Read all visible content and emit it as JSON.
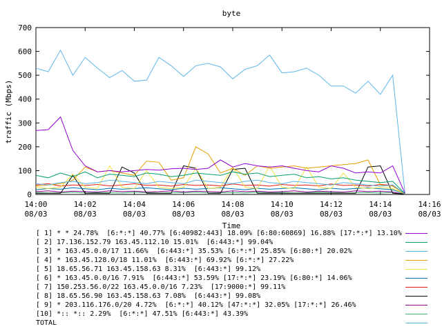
{
  "chart_data": {
    "type": "line",
    "title": "byte",
    "xlabel": "Time",
    "ylabel": "traffic (Mbps)",
    "ylim": [
      0,
      700
    ],
    "yticks": [
      0,
      100,
      200,
      300,
      400,
      500,
      600,
      700
    ],
    "xticks": [
      {
        "time": "14:00",
        "date": "08/03"
      },
      {
        "time": "14:02",
        "date": "08/03"
      },
      {
        "time": "14:04",
        "date": "08/03"
      },
      {
        "time": "14:06",
        "date": "08/03"
      },
      {
        "time": "14:08",
        "date": "08/03"
      },
      {
        "time": "14:10",
        "date": "08/03"
      },
      {
        "time": "14:12",
        "date": "08/03"
      },
      {
        "time": "14:14",
        "date": "08/03"
      },
      {
        "time": "14:16",
        "date": "08/03"
      }
    ],
    "xlim_minutes": [
      0,
      16
    ],
    "x_minutes": [
      0,
      0.5,
      1,
      1.5,
      2,
      2.5,
      3,
      3.5,
      4,
      4.5,
      5,
      5.5,
      6,
      6.5,
      7,
      7.5,
      8,
      8.5,
      9,
      9.5,
      10,
      10.5,
      11,
      11.5,
      12,
      12.5,
      13,
      13.5,
      14,
      14.5,
      15
    ],
    "grid": false,
    "legend_placement": "below",
    "series": [
      {
        "name": "[ 1] * * 24.78%  [6:*:*] 40.77% [6:40982:443] 18.09% [6:80:60869] 16.88% [17:*:*] 13.10%",
        "color": "#9400d3",
        "values": [
          268,
          272,
          325,
          185,
          120,
          95,
          100,
          95,
          100,
          105,
          102,
          108,
          110,
          105,
          110,
          145,
          115,
          130,
          120,
          115,
          120,
          110,
          100,
          95,
          120,
          110,
          90,
          95,
          90,
          120,
          5
        ]
      },
      {
        "name": "[ 2] 17.136.152.79 163.45.112.10 15.01%  [6:443:*] 99.04%",
        "color": "#009e73",
        "values": [
          80,
          70,
          90,
          75,
          95,
          70,
          85,
          80,
          75,
          90,
          85,
          75,
          80,
          90,
          85,
          80,
          95,
          85,
          90,
          75,
          80,
          85,
          70,
          75,
          65,
          70,
          60,
          55,
          50,
          55,
          3
        ]
      },
      {
        "name": "[ 3] * 163.45.0.0/17 11.66%  [6:443:*] 35.53% [6:*:*] 25.85% [6:80:*] 20.02%",
        "color": "#56b4e9",
        "values": [
          45,
          40,
          50,
          55,
          45,
          50,
          60,
          55,
          50,
          45,
          55,
          50,
          45,
          60,
          55,
          50,
          45,
          55,
          60,
          50,
          45,
          55,
          50,
          45,
          40,
          50,
          45,
          40,
          35,
          40,
          3
        ]
      },
      {
        "name": "[ 4] * 163.45.128.0/18 11.01%  [6:443:*] 69.92% [6:*:*] 27.22%",
        "color": "#e69f00",
        "values": [
          35,
          40,
          45,
          60,
          115,
          95,
          100,
          90,
          80,
          140,
          135,
          60,
          70,
          200,
          170,
          90,
          110,
          80,
          120,
          110,
          115,
          120,
          110,
          115,
          120,
          125,
          130,
          145,
          40,
          35,
          2
        ]
      },
      {
        "name": "[ 5] 18.65.56.71 163.45.158.63 8.31%  [6:443:*] 99.12%",
        "color": "#f0e442",
        "values": [
          30,
          25,
          30,
          85,
          30,
          25,
          120,
          30,
          25,
          100,
          30,
          25,
          30,
          110,
          25,
          30,
          115,
          30,
          25,
          120,
          30,
          25,
          115,
          30,
          25,
          90,
          30,
          25,
          30,
          25,
          2
        ]
      },
      {
        "name": "[ 6] * 163.45.0.0/16 7.91%  [6:443:*] 53.59% [17:*:*] 23.19% [6:80:*] 14.06%",
        "color": "#0072b2",
        "values": [
          20,
          25,
          22,
          28,
          24,
          20,
          26,
          22,
          25,
          28,
          24,
          20,
          26,
          22,
          25,
          28,
          24,
          20,
          26,
          22,
          25,
          28,
          24,
          20,
          26,
          22,
          25,
          28,
          24,
          20,
          2
        ]
      },
      {
        "name": "[ 7] 150.253.56.0/22 163.45.0.0/16 7.23%  [17:9000:*] 99.11%",
        "color": "#e51e10",
        "values": [
          40,
          45,
          35,
          40,
          38,
          42,
          36,
          40,
          45,
          38,
          40,
          35,
          42,
          38,
          40,
          36,
          44,
          38,
          40,
          35,
          42,
          38,
          40,
          36,
          44,
          38,
          40,
          35,
          42,
          38,
          2
        ]
      },
      {
        "name": "[ 8] 18.65.56.90 163.45.158.63 7.08%  [6:443:*] 99.08%",
        "color": "#000000",
        "values": [
          5,
          5,
          5,
          80,
          5,
          5,
          5,
          115,
          90,
          5,
          5,
          5,
          120,
          110,
          5,
          5,
          105,
          110,
          5,
          5,
          5,
          5,
          5,
          5,
          5,
          5,
          5,
          115,
          120,
          5,
          2
        ]
      },
      {
        "name": "[ 9] * 203.116.176.0/20 4.72%  [6:*:*] 40.12% [47:*:*] 32.05% [17:*:*] 26.46%",
        "color": "#8b008b",
        "values": [
          12,
          15,
          10,
          14,
          12,
          10,
          15,
          12,
          14,
          10,
          12,
          15,
          10,
          14,
          12,
          10,
          15,
          12,
          14,
          10,
          12,
          15,
          10,
          14,
          12,
          10,
          15,
          12,
          14,
          10,
          1
        ]
      },
      {
        "name": "[10] *:: *:: 2.29%  [6:*:*] 47.51% [6:443:*] 43.39%",
        "color": "#3cb371",
        "values": [
          8,
          6,
          7,
          9,
          6,
          8,
          7,
          6,
          9,
          8,
          6,
          7,
          8,
          9,
          6,
          7,
          8,
          6,
          9,
          7,
          8,
          6,
          7,
          9,
          8,
          6,
          7,
          8,
          6,
          9,
          1
        ]
      },
      {
        "name": "TOTAL",
        "color": "#5fb7e8",
        "values": [
          530,
          515,
          605,
          500,
          575,
          530,
          490,
          520,
          475,
          480,
          575,
          540,
          495,
          540,
          550,
          535,
          485,
          525,
          540,
          585,
          510,
          515,
          530,
          500,
          455,
          455,
          425,
          475,
          420,
          500,
          5
        ]
      }
    ]
  }
}
